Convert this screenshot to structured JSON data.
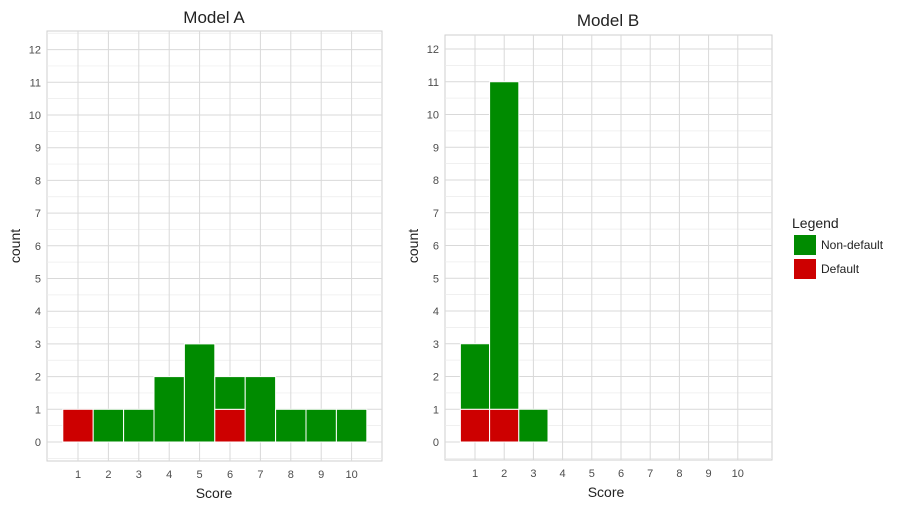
{
  "legend": {
    "title": "Legend",
    "entries": [
      {
        "label": "Non-default",
        "color": "#008b00"
      },
      {
        "label": "Default",
        "color": "#cd0000"
      }
    ]
  },
  "chart_data": [
    {
      "type": "bar",
      "stacked": true,
      "title": "Model A",
      "xlabel": "Score",
      "ylabel": "count",
      "categories": [
        "1",
        "2",
        "3",
        "4",
        "5",
        "6",
        "7",
        "8",
        "9",
        "10"
      ],
      "ylim": [
        0,
        12
      ],
      "yticks": [
        0,
        1,
        2,
        3,
        4,
        5,
        6,
        7,
        8,
        9,
        10,
        11,
        12
      ],
      "grid": true,
      "series": [
        {
          "name": "Default",
          "color": "#cd0000",
          "values": [
            1,
            0,
            0,
            0,
            0,
            1,
            0,
            0,
            0,
            0
          ]
        },
        {
          "name": "Non-default",
          "color": "#008b00",
          "values": [
            0,
            1,
            1,
            2,
            3,
            1,
            2,
            1,
            1,
            1
          ]
        }
      ]
    },
    {
      "type": "bar",
      "stacked": true,
      "title": "Model B",
      "xlabel": "Score",
      "ylabel": "count",
      "categories": [
        "1",
        "2",
        "3",
        "4",
        "5",
        "6",
        "7",
        "8",
        "9",
        "10"
      ],
      "ylim": [
        0,
        12
      ],
      "yticks": [
        0,
        1,
        2,
        3,
        4,
        5,
        6,
        7,
        8,
        9,
        10,
        11,
        12
      ],
      "grid": true,
      "series": [
        {
          "name": "Default",
          "color": "#cd0000",
          "values": [
            1,
            1,
            0,
            0,
            0,
            0,
            0,
            0,
            0,
            0
          ]
        },
        {
          "name": "Non-default",
          "color": "#008b00",
          "values": [
            2,
            10,
            1,
            0,
            0,
            0,
            0,
            0,
            0,
            0
          ]
        }
      ]
    }
  ]
}
